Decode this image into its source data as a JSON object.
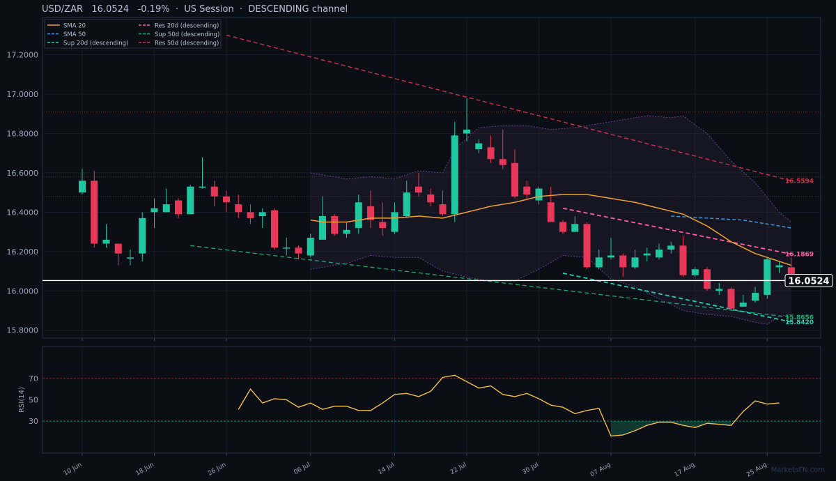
{
  "header": {
    "symbol": "USD/ZAR",
    "price": "16.0524",
    "change": "-0.19%",
    "session": "US Session",
    "pattern": "DESCENDING channel",
    "sep": "·"
  },
  "watermark": "MarketsFN.com",
  "colors": {
    "background": "#0b0e14",
    "bull": "#1fc8a0",
    "bear": "#e8385a",
    "sma20": "#f0a030",
    "sma50": "#2f9be8",
    "res20": "#ff5fa2",
    "res50": "#d03050",
    "sup20": "#20d0b0",
    "sup50": "#1ea878",
    "rsi": "#f2c04a",
    "bollinger": "#6a4a9a"
  },
  "chart_data": [
    {
      "type": "candlestick",
      "title": "USD/ZAR",
      "x_ticks": [
        "10 Jun",
        "18 Jun",
        "26 Jun",
        "06 Jul",
        "14 Jul",
        "22 Jul",
        "30 Jul",
        "07 Aug",
        "17 Aug",
        "25 Aug"
      ],
      "x_tick_index": [
        0,
        6,
        12,
        19,
        26,
        32,
        38,
        44,
        51,
        57
      ],
      "y_ticks": [
        "15.8000",
        "16.0000",
        "16.2000",
        "16.4000",
        "16.6000",
        "16.8000",
        "17.0000",
        "17.2000"
      ],
      "ylim": [
        15.76,
        17.39
      ],
      "grid": true,
      "legend_position": "top-left",
      "legend": [
        {
          "label": "SMA 20",
          "color": "#f0a030",
          "dash": "solid"
        },
        {
          "label": "SMA 50",
          "color": "#2f9be8",
          "dash": "dashed"
        },
        {
          "label": "Sup 20d (descending)",
          "color": "#20d0b0",
          "dash": "dashed"
        },
        {
          "label": "Res 20d (descending)",
          "color": "#ff5fa2",
          "dash": "dashed"
        },
        {
          "label": "Sup 50d (descending)",
          "color": "#1ea878",
          "dash": "dashed"
        },
        {
          "label": "Res 50d (descending)",
          "color": "#d03050",
          "dash": "dashed"
        }
      ],
      "candles": [
        [
          16.5,
          16.56,
          16.62,
          16.49
        ],
        [
          16.56,
          16.24,
          16.61,
          16.22
        ],
        [
          16.24,
          16.26,
          16.34,
          16.22
        ],
        [
          16.24,
          16.19,
          16.24,
          16.13
        ],
        [
          16.17,
          16.17,
          16.21,
          16.13
        ],
        [
          16.19,
          16.37,
          16.4,
          16.15
        ],
        [
          16.4,
          16.42,
          16.47,
          16.32
        ],
        [
          16.4,
          16.44,
          16.52,
          16.4
        ],
        [
          16.46,
          16.39,
          16.47,
          16.37
        ],
        [
          16.39,
          16.53,
          16.54,
          16.39
        ],
        [
          16.53,
          16.53,
          16.68,
          16.52
        ],
        [
          16.53,
          16.48,
          16.56,
          16.43
        ],
        [
          16.48,
          16.45,
          16.51,
          16.4
        ],
        [
          16.44,
          16.4,
          16.49,
          16.37
        ],
        [
          16.4,
          16.37,
          16.44,
          16.34
        ],
        [
          16.38,
          16.4,
          16.42,
          16.32
        ],
        [
          16.41,
          16.22,
          16.42,
          16.21
        ],
        [
          16.22,
          16.22,
          16.27,
          16.18
        ],
        [
          16.22,
          16.19,
          16.23,
          16.16
        ],
        [
          16.18,
          16.27,
          16.29,
          16.17
        ],
        [
          16.26,
          16.38,
          16.48,
          16.26
        ],
        [
          16.38,
          16.29,
          16.39,
          16.28
        ],
        [
          16.29,
          16.31,
          16.35,
          16.27
        ],
        [
          16.32,
          16.45,
          16.49,
          16.29
        ],
        [
          16.43,
          16.36,
          16.51,
          16.32
        ],
        [
          16.35,
          16.32,
          16.45,
          16.28
        ],
        [
          16.3,
          16.4,
          16.45,
          16.29
        ],
        [
          16.38,
          16.5,
          16.56,
          16.37
        ],
        [
          16.53,
          16.5,
          16.6,
          16.48
        ],
        [
          16.49,
          16.45,
          16.52,
          16.43
        ],
        [
          16.44,
          16.39,
          16.51,
          16.38
        ],
        [
          16.39,
          16.79,
          16.86,
          16.35
        ],
        [
          16.8,
          16.82,
          16.98,
          16.76
        ],
        [
          16.72,
          16.75,
          16.77,
          16.7
        ],
        [
          16.73,
          16.67,
          16.79,
          16.65
        ],
        [
          16.67,
          16.64,
          16.82,
          16.62
        ],
        [
          16.65,
          16.48,
          16.72,
          16.47
        ],
        [
          16.53,
          16.49,
          16.56,
          16.46
        ],
        [
          16.46,
          16.52,
          16.53,
          16.44
        ],
        [
          16.45,
          16.35,
          16.53,
          16.35
        ],
        [
          16.35,
          16.3,
          16.36,
          16.29
        ],
        [
          16.3,
          16.34,
          16.38,
          16.3
        ],
        [
          16.34,
          16.12,
          16.35,
          16.11
        ],
        [
          16.12,
          16.17,
          16.21,
          16.11
        ],
        [
          16.17,
          16.18,
          16.27,
          16.16
        ],
        [
          16.18,
          16.12,
          16.19,
          16.07
        ],
        [
          16.12,
          16.17,
          16.21,
          16.11
        ],
        [
          16.18,
          16.19,
          16.22,
          16.15
        ],
        [
          16.17,
          16.21,
          16.24,
          16.16
        ],
        [
          16.21,
          16.23,
          16.25,
          16.19
        ],
        [
          16.23,
          16.08,
          16.28,
          16.07
        ],
        [
          16.08,
          16.11,
          16.12,
          16.07
        ],
        [
          16.11,
          16.01,
          16.12,
          16.0
        ],
        [
          16.0,
          16.01,
          16.04,
          15.98
        ],
        [
          16.01,
          15.91,
          16.02,
          15.9
        ],
        [
          15.92,
          15.94,
          15.98,
          15.92
        ],
        [
          15.95,
          15.99,
          16.02,
          15.94
        ],
        [
          15.98,
          16.16,
          16.17,
          15.96
        ],
        [
          16.12,
          16.13,
          16.15,
          16.09
        ],
        [
          16.12,
          16.08,
          16.17,
          16.07
        ]
      ],
      "sma20": [
        {
          "i": 19,
          "v": 16.36
        },
        {
          "i": 20,
          "v": 16.35
        },
        {
          "i": 22,
          "v": 16.35
        },
        {
          "i": 24,
          "v": 16.37
        },
        {
          "i": 26,
          "v": 16.37
        },
        {
          "i": 28,
          "v": 16.38
        },
        {
          "i": 30,
          "v": 16.37
        },
        {
          "i": 32,
          "v": 16.4
        },
        {
          "i": 34,
          "v": 16.43
        },
        {
          "i": 36,
          "v": 16.45
        },
        {
          "i": 38,
          "v": 16.48
        },
        {
          "i": 40,
          "v": 16.49
        },
        {
          "i": 42,
          "v": 16.49
        },
        {
          "i": 44,
          "v": 16.47
        },
        {
          "i": 46,
          "v": 16.45
        },
        {
          "i": 48,
          "v": 16.42
        },
        {
          "i": 50,
          "v": 16.39
        },
        {
          "i": 52,
          "v": 16.33
        },
        {
          "i": 54,
          "v": 16.25
        },
        {
          "i": 56,
          "v": 16.19
        },
        {
          "i": 58,
          "v": 16.15
        },
        {
          "i": 59,
          "v": 16.13
        }
      ],
      "sma50": [
        {
          "i": 49,
          "v": 16.38
        },
        {
          "i": 52,
          "v": 16.37
        },
        {
          "i": 55,
          "v": 16.36
        },
        {
          "i": 59,
          "v": 16.32
        }
      ],
      "bollinger_upper": [
        {
          "i": 19,
          "v": 16.6
        },
        {
          "i": 22,
          "v": 16.57
        },
        {
          "i": 24,
          "v": 16.58
        },
        {
          "i": 26,
          "v": 16.57
        },
        {
          "i": 28,
          "v": 16.61
        },
        {
          "i": 30,
          "v": 16.6
        },
        {
          "i": 31,
          "v": 16.72
        },
        {
          "i": 33,
          "v": 16.83
        },
        {
          "i": 35,
          "v": 16.84
        },
        {
          "i": 37,
          "v": 16.84
        },
        {
          "i": 39,
          "v": 16.82
        },
        {
          "i": 41,
          "v": 16.83
        },
        {
          "i": 43,
          "v": 16.85
        },
        {
          "i": 45,
          "v": 16.87
        },
        {
          "i": 47,
          "v": 16.89
        },
        {
          "i": 49,
          "v": 16.88
        },
        {
          "i": 50,
          "v": 16.89
        },
        {
          "i": 52,
          "v": 16.8
        },
        {
          "i": 54,
          "v": 16.66
        },
        {
          "i": 56,
          "v": 16.55
        },
        {
          "i": 58,
          "v": 16.4
        },
        {
          "i": 59,
          "v": 16.35
        }
      ],
      "bollinger_lower": [
        {
          "i": 19,
          "v": 16.11
        },
        {
          "i": 22,
          "v": 16.14
        },
        {
          "i": 24,
          "v": 16.18
        },
        {
          "i": 26,
          "v": 16.17
        },
        {
          "i": 28,
          "v": 16.17
        },
        {
          "i": 30,
          "v": 16.1
        },
        {
          "i": 32,
          "v": 16.07
        },
        {
          "i": 34,
          "v": 16.05
        },
        {
          "i": 36,
          "v": 16.05
        },
        {
          "i": 38,
          "v": 16.11
        },
        {
          "i": 40,
          "v": 16.18
        },
        {
          "i": 42,
          "v": 16.17
        },
        {
          "i": 44,
          "v": 16.06
        },
        {
          "i": 46,
          "v": 16.02
        },
        {
          "i": 48,
          "v": 15.96
        },
        {
          "i": 50,
          "v": 15.9
        },
        {
          "i": 52,
          "v": 15.88
        },
        {
          "i": 54,
          "v": 15.87
        },
        {
          "i": 56,
          "v": 15.84
        },
        {
          "i": 57,
          "v": 15.83
        },
        {
          "i": 58,
          "v": 15.87
        },
        {
          "i": 59,
          "v": 15.88
        }
      ],
      "res50_line": [
        {
          "i": 12,
          "v": 17.3
        },
        {
          "i": 59,
          "v": 16.5594
        }
      ],
      "res20_line": [
        {
          "i": 40,
          "v": 16.42
        },
        {
          "i": 59,
          "v": 16.1869
        }
      ],
      "sup50_line": [
        {
          "i": 9,
          "v": 16.23
        },
        {
          "i": 59,
          "v": 15.8656
        }
      ],
      "sup20_line": [
        {
          "i": 40,
          "v": 16.09
        },
        {
          "i": 59,
          "v": 15.842
        }
      ],
      "horizontal_levels": [
        16.91,
        16.58,
        16.48
      ],
      "last_price": 16.0524,
      "labels": {
        "res50": "16.5594",
        "res20": "16.1869",
        "sup50": "15.8656",
        "sup20": "15.8420",
        "last": "16.0524"
      }
    },
    {
      "type": "line",
      "ylabel": "RSI(14)",
      "ylim": [
        0,
        100
      ],
      "y_ticks": [
        "30",
        "50",
        "70"
      ],
      "levels": [
        70,
        30
      ],
      "series": [
        {
          "start_index": 13,
          "values": [
            41,
            60,
            47,
            51,
            50,
            43,
            47,
            41,
            44,
            44,
            40,
            40,
            47,
            55,
            56,
            53,
            58,
            71,
            73,
            67,
            61,
            63,
            55,
            53,
            56,
            51,
            45,
            43,
            37,
            40,
            42,
            16,
            17,
            21,
            26,
            29,
            29,
            26,
            24,
            28,
            27,
            26,
            39,
            49,
            46,
            47
          ]
        }
      ]
    }
  ]
}
